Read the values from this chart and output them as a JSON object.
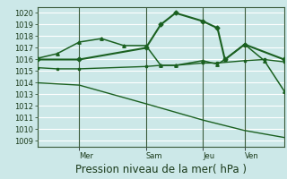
{
  "bg_color": "#cce8e8",
  "grid_color": "#ffffff",
  "line_color": "#1a6020",
  "ylim": [
    1008.5,
    1020.5
  ],
  "yticks": [
    1009,
    1010,
    1011,
    1012,
    1013,
    1014,
    1015,
    1016,
    1017,
    1018,
    1019,
    1020
  ],
  "xlabel": "Pression niveau de la mer( hPa )",
  "xlabel_fontsize": 8.5,
  "tick_fontsize": 6,
  "xlim": [
    0,
    1.0
  ],
  "vlines": [
    0.17,
    0.44,
    0.67,
    0.84
  ],
  "day_labels": [
    "Mer",
    "Sam",
    "Jeu",
    "Ven"
  ],
  "day_positions": [
    0.17,
    0.44,
    0.67,
    0.84
  ],
  "line1_x": [
    0.0,
    0.17,
    0.44,
    0.5,
    0.56,
    0.67,
    0.73,
    0.76,
    0.84,
    1.0
  ],
  "line1_y": [
    1016.0,
    1016.0,
    1017.0,
    1019.0,
    1020.0,
    1019.3,
    1018.7,
    1016.0,
    1017.3,
    1016.0
  ],
  "line2_x": [
    0.0,
    0.08,
    0.17,
    0.26,
    0.35,
    0.44,
    0.5,
    0.56,
    0.67,
    0.73,
    0.76,
    0.84,
    0.92,
    1.0
  ],
  "line2_y": [
    1016.1,
    1016.5,
    1017.5,
    1017.8,
    1017.2,
    1017.2,
    1015.5,
    1015.5,
    1015.9,
    1015.6,
    1016.0,
    1017.3,
    1015.9,
    1013.3
  ],
  "line3_x": [
    0.0,
    0.08,
    0.17,
    0.44,
    0.5,
    0.56,
    0.67,
    0.73,
    0.84,
    0.92,
    1.0
  ],
  "line3_y": [
    1015.3,
    1015.2,
    1015.2,
    1015.4,
    1015.5,
    1015.5,
    1015.7,
    1015.7,
    1015.9,
    1016.0,
    1015.8
  ],
  "line4_x": [
    0.0,
    0.17,
    0.44,
    0.67,
    0.84,
    1.0
  ],
  "line4_y": [
    1014.0,
    1013.8,
    1012.2,
    1010.8,
    1009.9,
    1009.3
  ]
}
